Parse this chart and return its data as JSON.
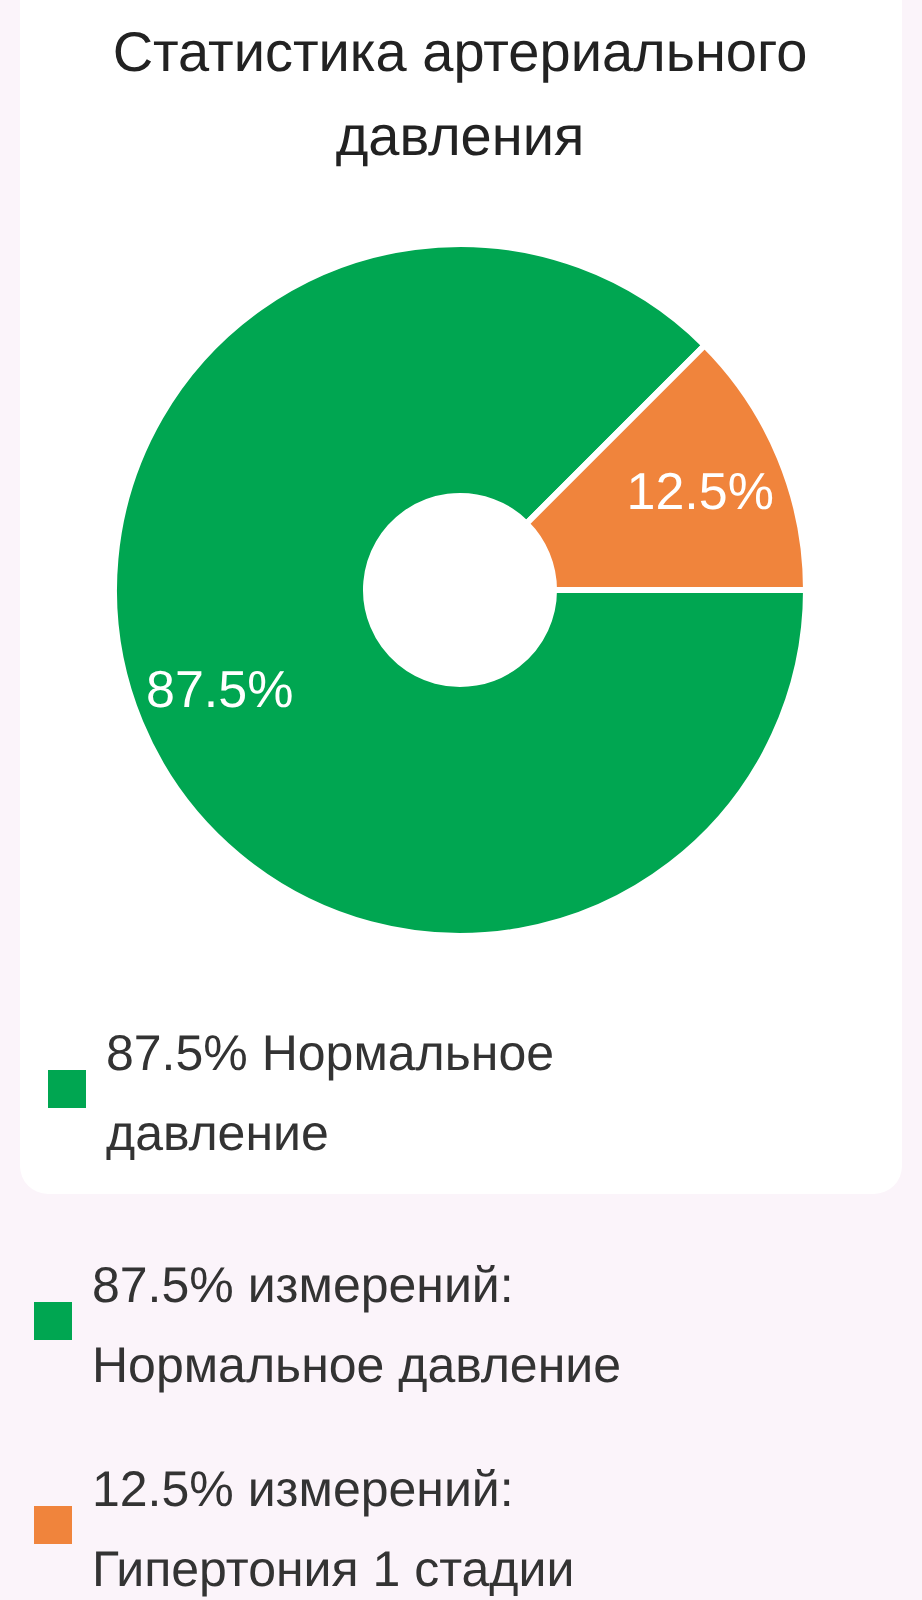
{
  "chart_data": {
    "type": "donut",
    "title": "Статистика артериального давления",
    "categories": [
      "Нормальное давление",
      "Гипертония 1 стадии"
    ],
    "values": [
      87.5,
      12.5
    ],
    "colors": [
      "#00a651",
      "#f0843c"
    ],
    "value_labels": [
      "87.5%",
      "12.5%"
    ],
    "legend": "bottom",
    "annotations": [
      "87.5% Нормальное давление",
      "87.5% измерений:",
      "12.5% измерений:"
    ]
  }
}
